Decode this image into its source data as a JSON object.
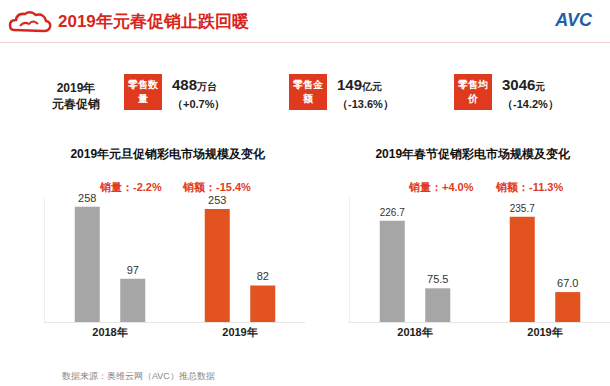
{
  "header": {
    "title": "2019年元春促销止跌回暖",
    "logo": "AVC"
  },
  "summary": {
    "label": [
      "2019年",
      "元春促销"
    ],
    "items": [
      {
        "name": "零售数量",
        "value": "488",
        "unit": "万台",
        "change": "（+0.7%）"
      },
      {
        "name": "零售金额",
        "value": "149",
        "unit": "亿元",
        "change": "（-13.6%）"
      },
      {
        "name": "零售均价",
        "value": "3046",
        "unit": "元",
        "change": "（-14.2%）"
      }
    ]
  },
  "chart_data": [
    {
      "type": "bar",
      "title": "2019年元旦促销彩电市场规模及变化",
      "categories": [
        "2018年",
        "2019年"
      ],
      "series": [
        {
          "name": "销量",
          "colors": [
            "#a6a6a6",
            "#e2531f"
          ],
          "values": [
            258,
            253
          ]
        },
        {
          "name": "销额",
          "colors": [
            "#a6a6a6",
            "#e2531f"
          ],
          "values": [
            97,
            82
          ]
        }
      ],
      "annotations": [
        "销量：-2.2%",
        "销额：-15.4%"
      ],
      "ylim": [
        0,
        280
      ],
      "yticks": [],
      "grid": false,
      "data_labels": true,
      "tick_labels": "x"
    },
    {
      "type": "bar",
      "title": "2019年春节促销彩电市场规模及变化",
      "categories": [
        "2018年",
        "2019年"
      ],
      "series": [
        {
          "name": "销量",
          "colors": [
            "#a6a6a6",
            "#e2531f"
          ],
          "values": [
            226.7,
            235.7
          ]
        },
        {
          "name": "销额",
          "colors": [
            "#a6a6a6",
            "#e2531f"
          ],
          "values": [
            75.5,
            67.0
          ],
          "value_labels": [
            "75.5",
            "67.0"
          ]
        }
      ],
      "annotations": [
        "销量：+4.0%",
        "销额：-11.3%"
      ],
      "ylim": [
        0,
        280
      ],
      "yticks": [],
      "grid": false,
      "data_labels": true,
      "tick_labels": "x"
    }
  ],
  "source": "数据来源：奥维云网（AVC）推总数据"
}
